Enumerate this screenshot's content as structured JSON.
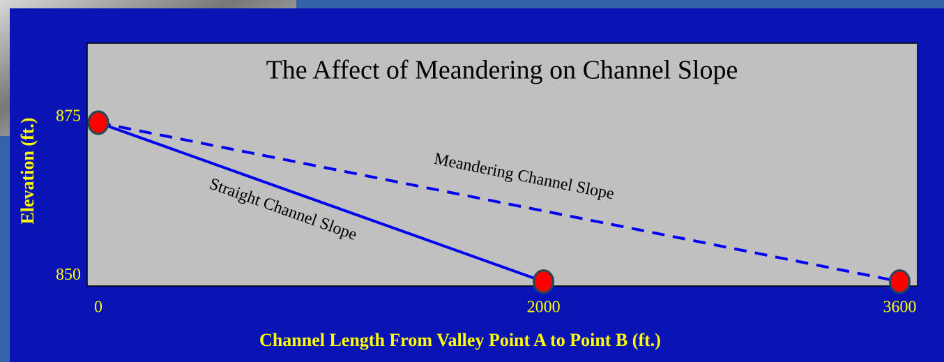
{
  "chart_data": {
    "type": "line",
    "title": "The Affect of Meandering on Channel Slope",
    "x_label": "Channel Length From Valley Point A to Point B (ft.)",
    "y_label": "Elevation (ft.)",
    "series": [
      {
        "name": "Straight Channel Slope",
        "color": "#0000ee",
        "dashed": false,
        "x": [
          0,
          2000
        ],
        "values": [
          875,
          850
        ]
      },
      {
        "name": "Meandering Channel Slope",
        "color": "#0000ee",
        "dashed": true,
        "x": [
          0,
          3600
        ],
        "values": [
          875,
          850
        ]
      }
    ],
    "marker_color": "#ff0000",
    "xlim": [
      -50,
      3680
    ],
    "ylim": [
      849.3,
      887.5
    ],
    "xticks": [
      0,
      2000,
      3600
    ],
    "yticks": [
      850,
      875
    ]
  }
}
